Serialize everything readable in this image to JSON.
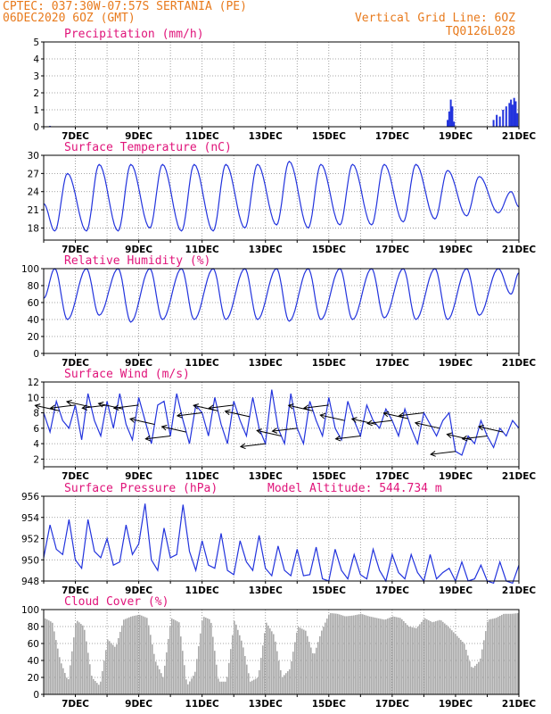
{
  "header": {
    "line1_left": "CPTEC:   037:30W-07:57S  SERTANIA (PE)",
    "line2_left": "06DEC2020 6OZ (GMT)",
    "line1_right": "Vertical Grid Line: 6OZ",
    "line2_right": "TQ0126L028"
  },
  "colors": {
    "header": "#e87a1c",
    "title": "#e0147a",
    "line": "#2233dd",
    "cloud": "#aaaaaa",
    "wind_arrow": "#000000"
  },
  "x_axis": {
    "days": [
      6,
      7,
      8,
      9,
      10,
      11,
      12,
      13,
      14,
      15,
      16,
      17,
      18,
      19,
      20,
      21
    ],
    "labels": [
      "7DEC",
      "9DEC",
      "11DEC",
      "13DEC",
      "15DEC",
      "17DEC",
      "19DEC",
      "21DEC"
    ],
    "label_days": [
      7,
      9,
      11,
      13,
      15,
      17,
      19,
      21
    ]
  },
  "panels": [
    {
      "id": "precip",
      "title": "Precipitation (mm/h)",
      "extra": "",
      "type": "bar",
      "ylim": [
        0,
        5
      ],
      "yticks": [
        "0",
        "1",
        "2",
        "3",
        "4",
        "5"
      ]
    },
    {
      "id": "temp",
      "title": "Surface Temperature (nC)",
      "extra": "",
      "type": "line",
      "ylim": [
        16,
        30
      ],
      "yticks": [
        "18",
        "21",
        "24",
        "27",
        "30"
      ]
    },
    {
      "id": "rh",
      "title": "Relative Humidity (%)",
      "extra": "",
      "type": "line",
      "ylim": [
        0,
        100
      ],
      "yticks": [
        "0",
        "20",
        "40",
        "60",
        "80",
        "100"
      ]
    },
    {
      "id": "wind",
      "title": "Surface Wind (m/s)",
      "extra": "",
      "type": "line",
      "ylim": [
        1,
        12
      ],
      "yticks": [
        "2",
        "4",
        "6",
        "8",
        "10",
        "12"
      ]
    },
    {
      "id": "press",
      "title": "Surface Pressure (hPa)",
      "extra": "Model Altitude: 544.734 m",
      "type": "line",
      "ylim": [
        948,
        956
      ],
      "yticks": [
        "948",
        "950",
        "952",
        "954",
        "956"
      ]
    },
    {
      "id": "cloud",
      "title": "Cloud Cover (%)",
      "extra": "",
      "type": "bar",
      "ylim": [
        0,
        100
      ],
      "yticks": [
        "0",
        "20",
        "40",
        "60",
        "80",
        "100"
      ]
    }
  ],
  "chart_data": {
    "type": "line",
    "x_unit": "day of December 2020",
    "precipitation": {
      "x": [
        6.2,
        18.75,
        18.8,
        18.85,
        18.9,
        18.95,
        20.2,
        20.3,
        20.4,
        20.5,
        20.6,
        20.7,
        20.75,
        20.8,
        20.85,
        20.9,
        20.95
      ],
      "y": [
        0.05,
        0.4,
        0.9,
        1.6,
        1.2,
        0.3,
        0.4,
        0.7,
        0.6,
        1.0,
        1.2,
        1.4,
        1.6,
        1.3,
        1.7,
        1.5,
        0.8
      ]
    },
    "temperature": {
      "min_x": [
        6.35,
        7.35,
        8.35,
        9.35,
        10.35,
        11.35,
        12.35,
        13.35,
        14.35,
        15.35,
        16.35,
        17.35,
        18.35,
        19.35,
        20.35
      ],
      "min_y": [
        17.5,
        17.5,
        17.5,
        18.0,
        17.5,
        17.5,
        18.0,
        18.5,
        18.0,
        18.5,
        18.5,
        19.0,
        19.5,
        20.0,
        20.5
      ],
      "max_x": [
        6.75,
        7.75,
        8.75,
        9.75,
        10.75,
        11.75,
        12.75,
        13.75,
        14.75,
        15.75,
        16.75,
        17.75,
        18.75,
        19.75,
        20.75
      ],
      "max_y": [
        27.0,
        28.5,
        28.5,
        28.5,
        28.5,
        28.5,
        28.5,
        29.0,
        28.5,
        28.5,
        28.5,
        28.5,
        27.5,
        26.5,
        24.0
      ],
      "start": 22,
      "end": 21.5
    },
    "relative_humidity": {
      "max_x": [
        6.35,
        7.35,
        8.35,
        9.35,
        10.35,
        11.35,
        12.35,
        13.35,
        14.35,
        15.35,
        16.35,
        17.35,
        18.35,
        19.35,
        20.35
      ],
      "max_y": [
        100,
        100,
        100,
        100,
        100,
        100,
        100,
        100,
        100,
        100,
        100,
        100,
        100,
        100,
        100
      ],
      "min_x": [
        6.75,
        7.75,
        8.75,
        9.75,
        10.75,
        11.75,
        12.75,
        13.75,
        14.75,
        15.75,
        16.75,
        17.75,
        18.75,
        19.75,
        20.75
      ],
      "min_y": [
        40,
        45,
        37,
        40,
        40,
        40,
        40,
        38,
        40,
        40,
        42,
        40,
        40,
        45,
        70
      ],
      "start": 65,
      "end": 95
    },
    "wind_speed": {
      "x": [
        6.0,
        6.2,
        6.4,
        6.6,
        6.8,
        7.0,
        7.2,
        7.4,
        7.6,
        7.8,
        8.0,
        8.2,
        8.4,
        8.6,
        8.8,
        9.0,
        9.2,
        9.4,
        9.6,
        9.8,
        10.0,
        10.2,
        10.4,
        10.6,
        10.8,
        11.0,
        11.2,
        11.4,
        11.6,
        11.8,
        12.0,
        12.2,
        12.4,
        12.6,
        12.8,
        13.0,
        13.2,
        13.4,
        13.6,
        13.8,
        14.0,
        14.2,
        14.4,
        14.6,
        14.8,
        15.0,
        15.2,
        15.4,
        15.6,
        15.8,
        16.0,
        16.2,
        16.4,
        16.6,
        16.8,
        17.0,
        17.2,
        17.4,
        17.6,
        17.8,
        18.0,
        18.2,
        18.4,
        18.6,
        18.8,
        19.0,
        19.2,
        19.4,
        19.6,
        19.8,
        20.0,
        20.2,
        20.4,
        20.6,
        20.8,
        21.0
      ],
      "y": [
        8,
        5.5,
        9.5,
        7,
        6,
        9,
        4.5,
        10.5,
        7,
        5,
        9.5,
        6,
        10.5,
        6.5,
        4.5,
        10,
        7,
        4,
        9,
        9.5,
        5,
        10.5,
        7,
        4,
        9,
        8,
        5,
        10,
        6.5,
        4,
        9.5,
        7,
        5,
        10,
        6,
        4,
        11,
        6,
        4,
        10.5,
        6,
        4,
        9.5,
        7,
        5,
        10,
        6,
        4.5,
        9.5,
        7,
        5,
        9,
        7,
        6,
        8.5,
        7,
        5,
        8.5,
        6,
        4,
        8,
        6.5,
        5,
        7,
        8,
        3,
        2.5,
        5,
        4,
        7,
        5,
        3.5,
        6,
        5,
        7,
        6
      ]
    },
    "pressure": {
      "x": [
        6.0,
        6.2,
        6.4,
        6.6,
        6.8,
        7.0,
        7.2,
        7.4,
        7.6,
        7.8,
        8.0,
        8.2,
        8.4,
        8.6,
        8.8,
        9.0,
        9.2,
        9.4,
        9.6,
        9.8,
        10.0,
        10.2,
        10.4,
        10.6,
        10.8,
        11.0,
        11.2,
        11.4,
        11.6,
        11.8,
        12.0,
        12.2,
        12.4,
        12.6,
        12.8,
        13.0,
        13.2,
        13.4,
        13.6,
        13.8,
        14.0,
        14.2,
        14.4,
        14.6,
        14.8,
        15.0,
        15.2,
        15.4,
        15.6,
        15.8,
        16.0,
        16.2,
        16.4,
        16.6,
        16.8,
        17.0,
        17.2,
        17.4,
        17.6,
        17.8,
        18.0,
        18.2,
        18.4,
        18.6,
        18.8,
        19.0,
        19.2,
        19.4,
        19.6,
        19.8,
        20.0,
        20.2,
        20.4,
        20.6,
        20.8,
        21.0
      ],
      "y": [
        950.2,
        953.3,
        951.0,
        950.5,
        953.8,
        950.0,
        949.2,
        953.8,
        950.8,
        950.2,
        952.0,
        949.5,
        949.8,
        953.3,
        950.5,
        951.5,
        955.3,
        950.0,
        949.0,
        953.0,
        950.2,
        950.5,
        955.2,
        950.8,
        949.0,
        951.8,
        949.5,
        949.2,
        952.5,
        949.0,
        948.6,
        951.8,
        949.8,
        949.0,
        952.3,
        949.2,
        948.5,
        951.3,
        949.0,
        948.5,
        951.0,
        948.5,
        948.6,
        951.2,
        948.2,
        948.0,
        951.0,
        949.0,
        948.2,
        950.5,
        948.6,
        948.2,
        951.0,
        949.0,
        948.0,
        950.5,
        948.8,
        948.2,
        950.5,
        948.8,
        948.0,
        950.5,
        948.2,
        948.8,
        949.2,
        948.0,
        949.8,
        948.0,
        948.2,
        949.5,
        948.0,
        947.8,
        949.8,
        948.0,
        947.8,
        949.5
      ]
    },
    "cloud_cover": {
      "x": [
        6.0,
        6.25,
        6.5,
        6.75,
        7.0,
        7.25,
        7.5,
        7.75,
        8.0,
        8.25,
        8.5,
        8.75,
        9.0,
        9.25,
        9.5,
        9.75,
        10.0,
        10.25,
        10.5,
        10.75,
        11.0,
        11.25,
        11.5,
        11.75,
        12.0,
        12.25,
        12.5,
        12.75,
        13.0,
        13.25,
        13.5,
        13.75,
        14.0,
        14.25,
        14.5,
        14.75,
        15.0,
        15.25,
        15.5,
        15.75,
        16.0,
        16.25,
        16.5,
        16.75,
        17.0,
        17.25,
        17.5,
        17.75,
        18.0,
        18.25,
        18.5,
        18.75,
        19.0,
        19.25,
        19.5,
        19.75,
        20.0,
        20.25,
        20.5,
        20.75,
        21.0
      ],
      "y": [
        90,
        85,
        40,
        15,
        88,
        80,
        20,
        10,
        65,
        55,
        88,
        92,
        94,
        90,
        40,
        20,
        90,
        85,
        10,
        25,
        92,
        88,
        15,
        15,
        88,
        60,
        15,
        20,
        85,
        70,
        20,
        30,
        80,
        75,
        45,
        75,
        96,
        95,
        92,
        93,
        95,
        92,
        90,
        88,
        92,
        90,
        80,
        78,
        90,
        85,
        88,
        80,
        70,
        60,
        30,
        40,
        88,
        90,
        95,
        95,
        96
      ]
    },
    "wind_arrows_day_step": 0.5
  }
}
